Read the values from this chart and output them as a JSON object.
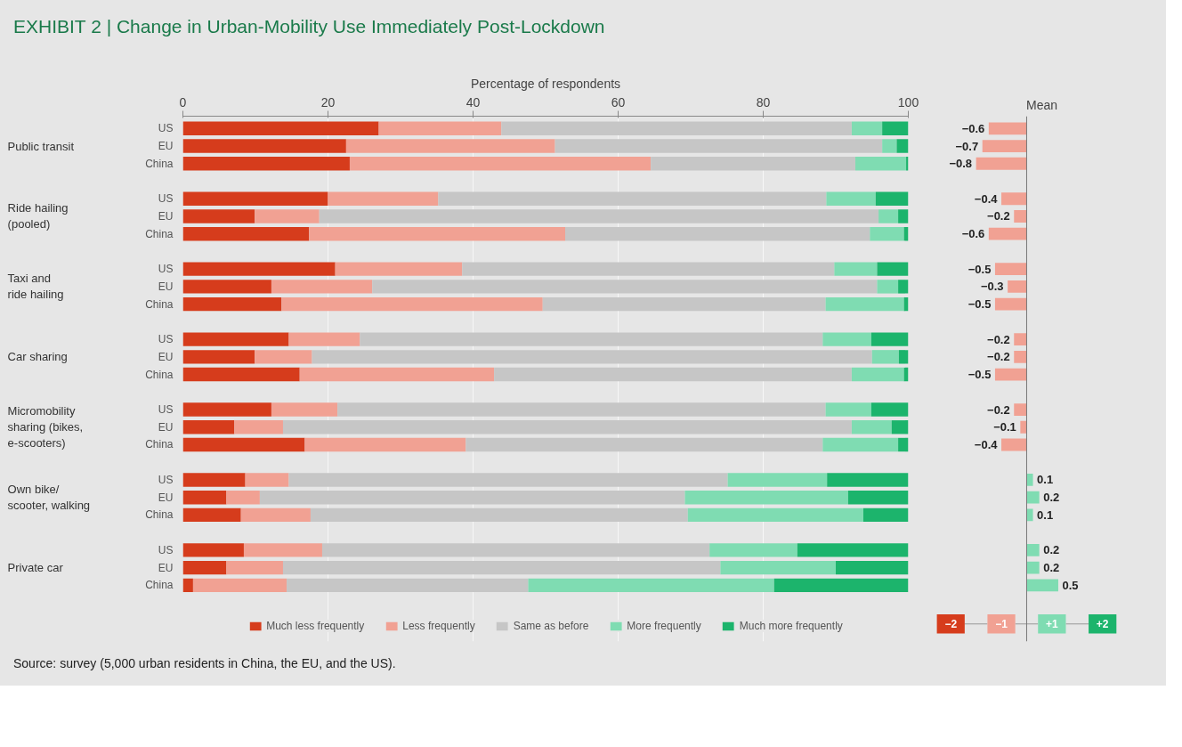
{
  "chart_data": [
    {
      "type": "bar",
      "orientation": "horizontal",
      "stacked": true,
      "title": "EXHIBIT 2 | Change in Urban-Mobility Use Immediately Post-Lockdown",
      "xlabel": "Percentage of respondents",
      "xlim": [
        0,
        100
      ],
      "xticks": [
        0,
        20,
        40,
        60,
        80,
        100
      ],
      "grid": "x",
      "legend": "bottom",
      "categories": [
        "US",
        "EU",
        "China",
        "US",
        "EU",
        "China",
        "US",
        "EU",
        "China",
        "US",
        "EU",
        "China",
        "US",
        "EU",
        "China",
        "US",
        "EU",
        "China",
        "US",
        "EU",
        "China"
      ],
      "series": [
        {
          "name": "Much less frequently",
          "color": "#d63c1c",
          "values": [
            27.0,
            22.5,
            23.0,
            20.0,
            9.9,
            17.4,
            21.0,
            12.2,
            13.6,
            14.6,
            9.9,
            16.1,
            12.2,
            7.1,
            16.8,
            8.6,
            6.0,
            8.0,
            8.4,
            6.0,
            1.4
          ]
        },
        {
          "name": "Less frequently",
          "color": "#f1a193",
          "values": [
            16.9,
            28.8,
            41.5,
            15.2,
            8.9,
            35.3,
            17.5,
            13.9,
            36.0,
            9.8,
            7.9,
            26.8,
            9.1,
            6.7,
            22.2,
            6.0,
            4.6,
            9.6,
            10.8,
            7.8,
            12.9
          ]
        },
        {
          "name": "Same as before",
          "color": "#c6c6c6",
          "values": [
            48.3,
            45.1,
            28.2,
            53.5,
            77.1,
            42.0,
            51.3,
            69.6,
            39.0,
            63.8,
            77.2,
            49.3,
            67.3,
            78.4,
            49.2,
            60.5,
            58.6,
            52.0,
            53.4,
            60.3,
            33.3
          ]
        },
        {
          "name": "More frequently",
          "color": "#7fdcb2",
          "values": [
            4.2,
            2.0,
            7.0,
            6.8,
            2.7,
            4.7,
            5.9,
            2.9,
            10.8,
            6.7,
            3.7,
            7.2,
            6.3,
            5.5,
            10.4,
            13.7,
            22.5,
            24.2,
            12.1,
            15.9,
            33.9
          ]
        },
        {
          "name": "Much more frequently",
          "color": "#1cb46c",
          "values": [
            3.6,
            1.6,
            0.3,
            4.5,
            1.4,
            0.6,
            4.3,
            1.4,
            0.6,
            5.1,
            1.3,
            0.6,
            5.1,
            2.3,
            1.4,
            11.2,
            8.3,
            6.2,
            15.3,
            10.0,
            18.5
          ]
        }
      ],
      "annotations": [
        "Public transit",
        "Ride hailing\n(pooled)",
        "Taxi and\nride hailing",
        "Car sharing",
        "Micromobility\nsharing (bikes,\ne-scooters)",
        "Own bike/\nscooter, walking",
        "Private car",
        "Source: survey (5,000 urban residents in China, the EU, and the US)."
      ]
    },
    {
      "type": "bar",
      "orientation": "horizontal",
      "title": "Mean",
      "data_labels": true,
      "values": [
        -0.6,
        -0.7,
        -0.8,
        -0.4,
        -0.2,
        -0.6,
        -0.5,
        -0.3,
        -0.5,
        -0.2,
        -0.2,
        -0.5,
        -0.2,
        -0.1,
        -0.4,
        0.1,
        0.2,
        0.1,
        0.2,
        0.2,
        0.5
      ],
      "colors": [
        "#f1a193",
        "#f1a193",
        "#f1a193",
        "#f1a193",
        "#f1a193",
        "#f1a193",
        "#f1a193",
        "#f1a193",
        "#f1a193",
        "#f1a193",
        "#f1a193",
        "#f1a193",
        "#f1a193",
        "#f1a193",
        "#f1a193",
        "#7fdcb2",
        "#7fdcb2",
        "#7fdcb2",
        "#7fdcb2",
        "#7fdcb2",
        "#7fdcb2"
      ],
      "annotations": [
        "−2",
        "−1",
        "+1",
        "+2"
      ]
    }
  ]
}
